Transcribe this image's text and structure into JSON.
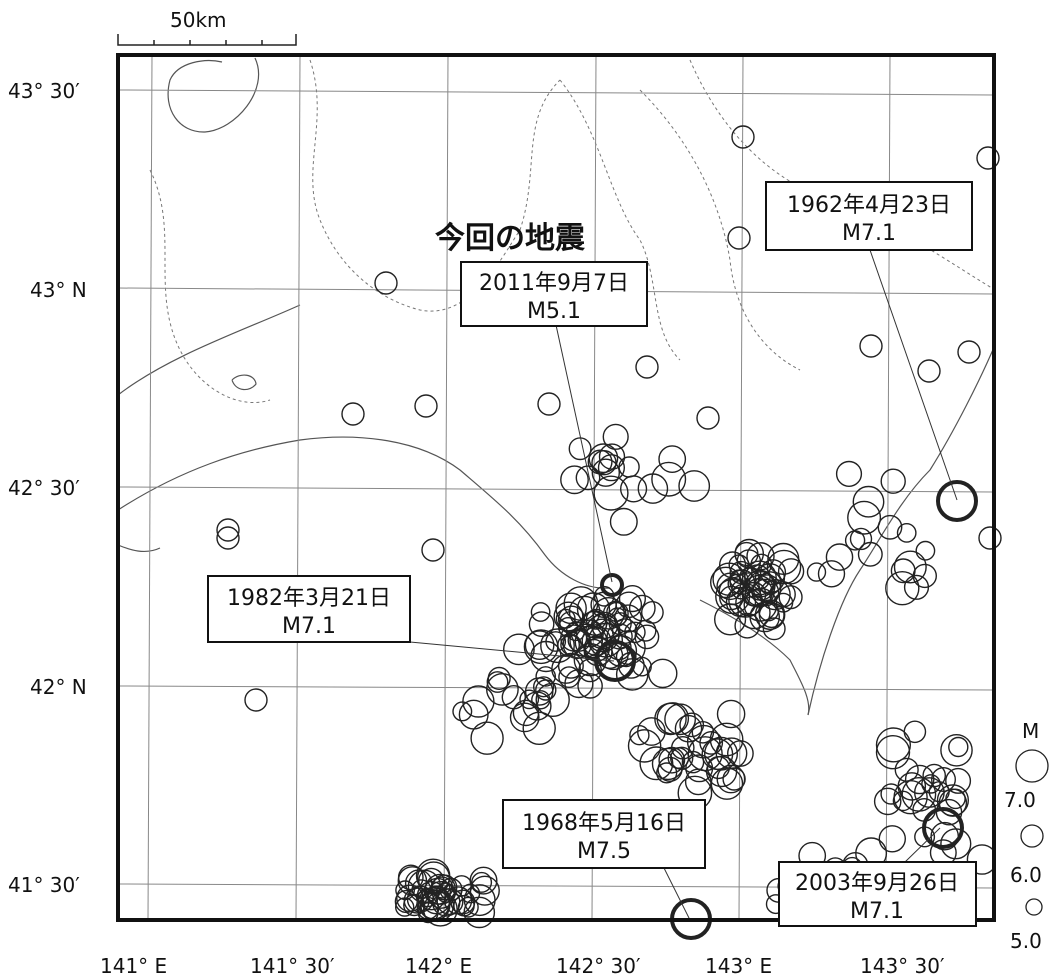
{
  "scale_bar": {
    "label": "50km"
  },
  "latitude_labels": [
    "43° 30′",
    "43° N",
    "42° 30′",
    "42° N",
    "41° 30′"
  ],
  "longitude_labels": [
    "141° E",
    "141° 30′",
    "142° E",
    "142° 30′",
    "143° E",
    "143° 30′"
  ],
  "headline": "今回の地震",
  "annotations": [
    {
      "date": "2011年9月7日",
      "magnitude": "M5.1"
    },
    {
      "date": "1962年4月23日",
      "magnitude": "M7.1"
    },
    {
      "date": "1982年3月21日",
      "magnitude": "M7.1"
    },
    {
      "date": "1968年5月16日",
      "magnitude": "M7.5"
    },
    {
      "date": "2003年9月26日",
      "magnitude": "M7.1"
    }
  ],
  "legend": {
    "title": "M",
    "entries": [
      {
        "label": "7.0",
        "magnitude": 7.0
      },
      {
        "label": "6.0",
        "magnitude": 6.0
      },
      {
        "label": "5.0",
        "magnitude": 5.0
      }
    ]
  }
}
